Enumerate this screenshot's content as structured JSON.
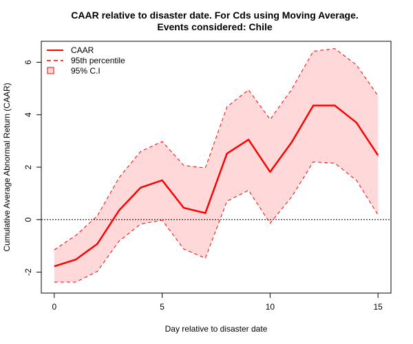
{
  "chart_data": {
    "type": "line",
    "title_line1": "CAAR relative to disaster date. For Cds using Moving Average.",
    "title_line2": "Events considered: Chile",
    "xlabel": "Day relative to disaster date",
    "ylabel": "Cumulative Average Abnormal Return (CAAR)",
    "xlim": [
      -0.6,
      15.6
    ],
    "ylim": [
      -2.8,
      6.8
    ],
    "xticks": [
      0,
      5,
      10,
      15
    ],
    "yticks": [
      -2,
      0,
      2,
      4,
      6
    ],
    "zero_line": 0,
    "x": [
      0,
      1,
      2,
      3,
      4,
      5,
      6,
      7,
      8,
      9,
      10,
      11,
      12,
      13,
      14,
      15
    ],
    "series": [
      {
        "name": "CAAR",
        "values": [
          -1.78,
          -1.52,
          -0.92,
          0.35,
          1.22,
          1.5,
          0.45,
          0.25,
          2.52,
          3.05,
          1.82,
          2.95,
          4.35,
          4.35,
          3.7,
          2.45
        ]
      },
      {
        "name": "95th percentile",
        "upper": [
          -1.15,
          -0.6,
          0.15,
          1.6,
          2.6,
          2.98,
          2.07,
          1.97,
          4.3,
          4.95,
          3.82,
          4.97,
          6.42,
          6.52,
          5.9,
          4.72
        ],
        "lower": [
          -2.38,
          -2.38,
          -1.97,
          -0.82,
          -0.17,
          -0.02,
          -1.12,
          -1.47,
          0.7,
          1.12,
          -0.14,
          0.87,
          2.2,
          2.15,
          1.5,
          0.18
        ]
      }
    ],
    "legend": [
      "CAAR",
      "95th percentile",
      "95% C.I"
    ],
    "legend_position": "top-left",
    "colors": {
      "line": "#ff0000",
      "band_fill": "#ffd9d9",
      "zero_line": "#000000"
    }
  }
}
